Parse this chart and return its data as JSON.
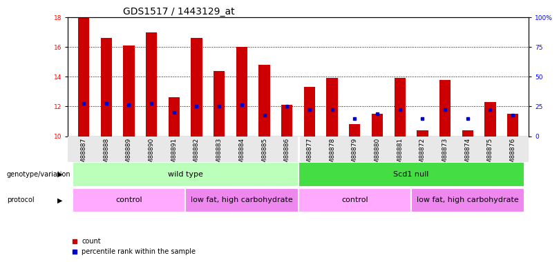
{
  "title": "GDS1517 / 1443129_at",
  "samples": [
    "GSM88887",
    "GSM88888",
    "GSM88889",
    "GSM88890",
    "GSM88891",
    "GSM88882",
    "GSM88883",
    "GSM88884",
    "GSM88885",
    "GSM88886",
    "GSM88877",
    "GSM88878",
    "GSM88879",
    "GSM88880",
    "GSM88881",
    "GSM88872",
    "GSM88873",
    "GSM88874",
    "GSM88875",
    "GSM88876"
  ],
  "red_values": [
    18.0,
    16.6,
    16.1,
    17.0,
    12.6,
    16.6,
    14.4,
    16.0,
    14.8,
    12.1,
    13.3,
    13.9,
    10.8,
    11.5,
    13.9,
    10.4,
    13.8,
    10.4,
    12.3,
    11.5
  ],
  "blue_values": [
    12.2,
    12.2,
    12.1,
    12.2,
    11.6,
    12.0,
    12.0,
    12.1,
    11.4,
    12.0,
    11.8,
    11.8,
    11.2,
    11.5,
    11.8,
    11.2,
    11.8,
    11.2,
    11.8,
    11.4
  ],
  "ylim_left": [
    10,
    18
  ],
  "ylim_right": [
    0,
    100
  ],
  "yticks_left": [
    10,
    12,
    14,
    16,
    18
  ],
  "yticks_right": [
    0,
    25,
    50,
    75,
    100
  ],
  "bar_width": 0.5,
  "red_color": "#cc0000",
  "blue_color": "#0000cc",
  "genotype_groups": [
    {
      "label": "wild type",
      "start": 0,
      "end": 9,
      "color": "#bbffbb"
    },
    {
      "label": "Scd1 null",
      "start": 10,
      "end": 19,
      "color": "#44dd44"
    }
  ],
  "protocol_groups": [
    {
      "label": "control",
      "start": 0,
      "end": 4,
      "color": "#ffaaff"
    },
    {
      "label": "low fat, high carbohydrate",
      "start": 5,
      "end": 9,
      "color": "#ee88ee"
    },
    {
      "label": "control",
      "start": 10,
      "end": 14,
      "color": "#ffaaff"
    },
    {
      "label": "low fat, high carbohydrate",
      "start": 15,
      "end": 19,
      "color": "#ee88ee"
    }
  ],
  "legend_items": [
    {
      "label": "count",
      "color": "#cc0000"
    },
    {
      "label": "percentile rank within the sample",
      "color": "#0000cc"
    }
  ],
  "title_fontsize": 10,
  "tick_fontsize": 6.5,
  "annotation_fontsize": 8
}
